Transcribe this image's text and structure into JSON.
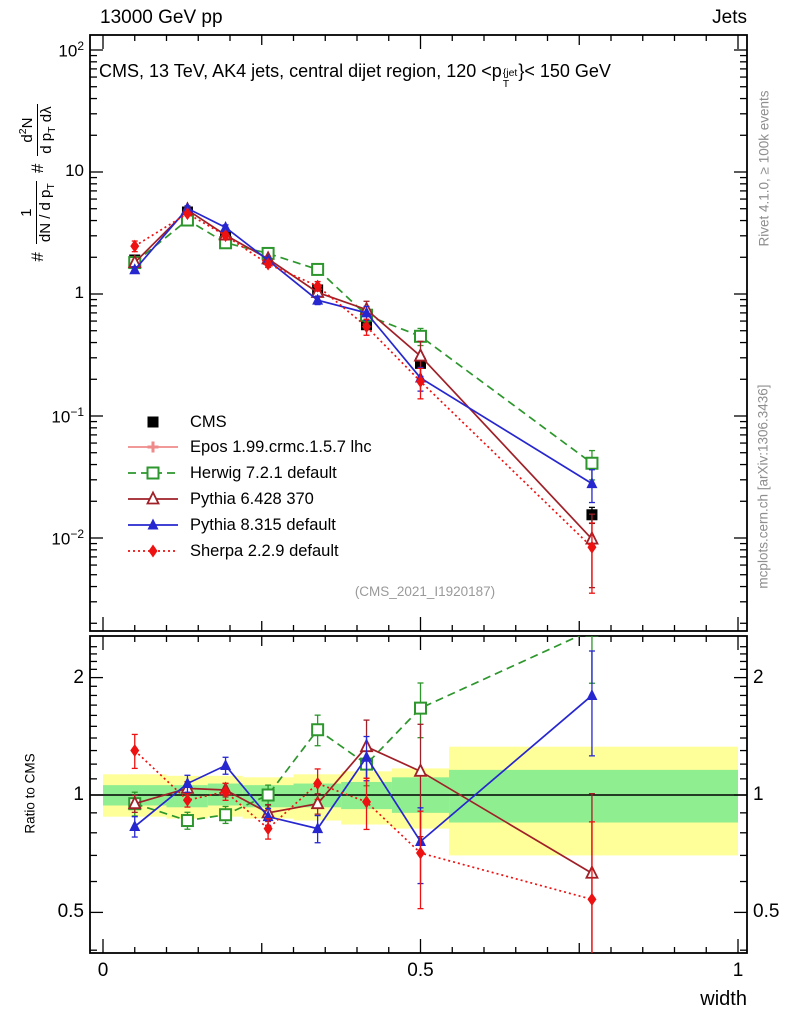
{
  "header": {
    "left": "13000 GeV pp",
    "right": "Jets"
  },
  "title": {
    "prefix": "CMS, 13 TeV, AK4 jets, central dijet region, 120 <p",
    "sup": "{jet",
    "sub": "T",
    "suffix": "}< 150 GeV"
  },
  "watermark": "(CMS_2021_I1920187)",
  "side_notes": {
    "rivet": "Rivet 4.1.0, ≥ 100k events",
    "mcplots": "mcplots.cern.ch [arXiv:1306.3436]"
  },
  "ylabel": {
    "hash1": "#",
    "frac1": {
      "num": "1",
      "den": "dN / d p",
      "den_sub": "T"
    },
    "hash2": "#",
    "frac2": {
      "num_a": "d",
      "num_sup": "2",
      "num_b": "N",
      "den": "d p",
      "den_sub": "T",
      "den_b": " dλ"
    }
  },
  "ratio_ylabel": "Ratio to CMS",
  "xlabel": "width",
  "legend": [
    {
      "label": "CMS"
    },
    {
      "label": "Epos 1.99.crmc.1.5.7 lhc"
    },
    {
      "label": "Herwig 7.2.1 default"
    },
    {
      "label": "Pythia 6.428 370"
    },
    {
      "label": "Pythia 8.315 default"
    },
    {
      "label": "Sherpa 2.2.9 default"
    }
  ],
  "chart_data": {
    "type": "line",
    "title": "CMS, 13 TeV, AK4 jets, central dijet region, 120 < pT{jet} < 150 GeV",
    "xlabel": "width",
    "ylabel": "# 1/(dN/dpT) # d2N/(dpT dlambda)",
    "ratio_label": "Ratio to CMS",
    "x_range": [
      0,
      1
    ],
    "y_scale": "log",
    "y_range": [
      0.0017,
      132
    ],
    "ratio_scale": "log",
    "ratio_range": [
      0.39,
      2.56
    ],
    "grid": false,
    "legend_position": "middle-left",
    "x": [
      0.05,
      0.133,
      0.193,
      0.26,
      0.338,
      0.415,
      0.5,
      0.77
    ],
    "series": [
      {
        "name": "CMS",
        "color": "#000000",
        "line": "none",
        "marker": "square-filled",
        "values": [
          1.9,
          4.7,
          2.95,
          2.15,
          1.08,
          0.56,
          0.27,
          0.0155
        ],
        "ratio": [
          1,
          1,
          1,
          1,
          1,
          1,
          1,
          1
        ],
        "rel_err": [
          0.04,
          0.03,
          0.03,
          0.03,
          0.04,
          0.05,
          0.07,
          0.15
        ],
        "show_in_ratio": false
      },
      {
        "name": "Epos 1.99.crmc.1.5.7 lhc",
        "color": "#ef8a8a",
        "line": "solid",
        "marker": "cross-open",
        "values": [],
        "ratio": [],
        "rel_err": [],
        "show_in_ratio": false
      },
      {
        "name": "Herwig 7.2.1 default",
        "color": "#2d962d",
        "line": "dashed",
        "marker": "square-open",
        "values": [
          1.81,
          4.04,
          2.63,
          2.15,
          1.59,
          0.67,
          0.45,
          0.041
        ],
        "ratio": [
          0.95,
          0.86,
          0.89,
          1.0,
          1.47,
          1.2,
          1.67,
          2.65
        ],
        "rel_err": [
          0.07,
          0.05,
          0.05,
          0.06,
          0.09,
          0.12,
          0.16,
          0.27
        ],
        "show_in_ratio": true
      },
      {
        "name": "Pythia 6.428 370",
        "color": "#a02028",
        "line": "solid",
        "marker": "triangle-open",
        "values": [
          1.81,
          4.89,
          3.04,
          1.94,
          1.03,
          0.745,
          0.31,
          0.0098
        ],
        "ratio": [
          0.95,
          1.04,
          1.03,
          0.9,
          0.95,
          1.33,
          1.15,
          0.63
        ],
        "rel_err": [
          0.05,
          0.04,
          0.04,
          0.05,
          0.06,
          0.17,
          0.32,
          0.6
        ],
        "show_in_ratio": true
      },
      {
        "name": "Pythia 8.315 default",
        "color": "#2727cf",
        "line": "solid",
        "marker": "triangle-filled",
        "values": [
          1.58,
          5.03,
          3.51,
          1.89,
          0.89,
          0.7,
          0.205,
          0.0279
        ],
        "ratio": [
          0.83,
          1.07,
          1.19,
          0.88,
          0.82,
          1.25,
          0.76,
          1.8
        ],
        "rel_err": [
          0.06,
          0.05,
          0.05,
          0.05,
          0.08,
          0.13,
          0.22,
          0.3
        ],
        "show_in_ratio": true
      },
      {
        "name": "Sherpa 2.2.9 default",
        "color": "#ee1111",
        "line": "dotted",
        "marker": "diamond-filled",
        "values": [
          2.47,
          4.56,
          3.01,
          1.76,
          1.16,
          0.54,
          0.192,
          0.0084
        ],
        "ratio": [
          1.3,
          0.97,
          1.02,
          0.82,
          1.07,
          0.96,
          0.71,
          0.54
        ],
        "rel_err": [
          0.1,
          0.04,
          0.05,
          0.06,
          0.09,
          0.15,
          0.28,
          0.58
        ],
        "show_in_ratio": true
      }
    ],
    "ratio_bands": {
      "yellow_color": "#ffff99",
      "green_color": "#8fee8f",
      "bins": [
        {
          "x1": 0.0,
          "x2": 0.1,
          "yellow": [
            0.88,
            1.13
          ],
          "green": [
            0.94,
            1.06
          ]
        },
        {
          "x1": 0.1,
          "x2": 0.165,
          "yellow": [
            0.87,
            1.12
          ],
          "green": [
            0.93,
            1.06
          ]
        },
        {
          "x1": 0.165,
          "x2": 0.22,
          "yellow": [
            0.88,
            1.12
          ],
          "green": [
            0.94,
            1.07
          ]
        },
        {
          "x1": 0.22,
          "x2": 0.3,
          "yellow": [
            0.87,
            1.11
          ],
          "green": [
            0.93,
            1.06
          ]
        },
        {
          "x1": 0.3,
          "x2": 0.375,
          "yellow": [
            0.86,
            1.13
          ],
          "green": [
            0.93,
            1.07
          ]
        },
        {
          "x1": 0.375,
          "x2": 0.455,
          "yellow": [
            0.84,
            1.15
          ],
          "green": [
            0.92,
            1.08
          ]
        },
        {
          "x1": 0.455,
          "x2": 0.545,
          "yellow": [
            0.82,
            1.17
          ],
          "green": [
            0.9,
            1.11
          ]
        },
        {
          "x1": 0.545,
          "x2": 1.0,
          "yellow": [
            0.7,
            1.33
          ],
          "green": [
            0.85,
            1.16
          ]
        }
      ]
    },
    "y_ticks": [
      {
        "v": 100,
        "base": "10",
        "exp": "2"
      },
      {
        "v": 10,
        "base": "10",
        "exp": ""
      },
      {
        "v": 1,
        "base": "1",
        "exp": ""
      },
      {
        "v": 0.1,
        "base": "10",
        "exp": "−1"
      },
      {
        "v": 0.01,
        "base": "10",
        "exp": "−2"
      }
    ],
    "x_ticks": [
      {
        "v": 0,
        "label": "0"
      },
      {
        "v": 0.5,
        "label": "0.5"
      },
      {
        "v": 1,
        "label": "1"
      }
    ],
    "ratio_ticks": [
      {
        "v": 2,
        "label": "2"
      },
      {
        "v": 1,
        "label": "1"
      },
      {
        "v": 0.5,
        "label": "0.5"
      }
    ]
  }
}
